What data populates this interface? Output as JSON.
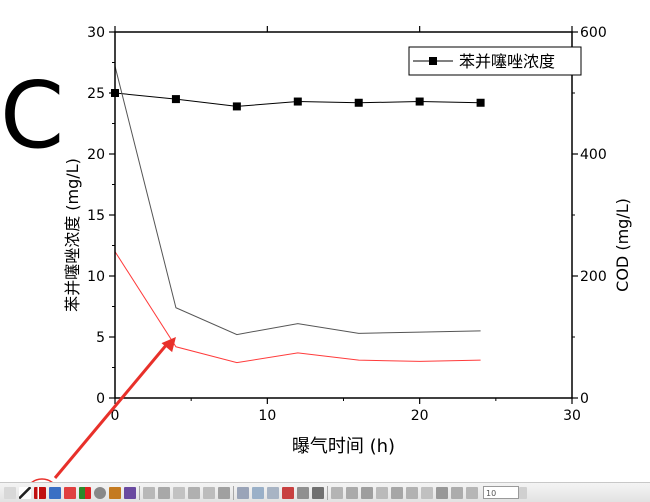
{
  "panel_label": "C",
  "chart_data": {
    "type": "line",
    "x_axis": {
      "label": "曝气时间 (h)",
      "range": [
        0,
        30
      ],
      "ticks": [
        0,
        10,
        20,
        30
      ]
    },
    "y_left": {
      "label": "苯并噻唑浓度 (mg/L)",
      "range": [
        0,
        30
      ],
      "ticks": [
        0,
        5,
        10,
        15,
        20,
        25,
        30
      ]
    },
    "y_right": {
      "label": "COD (mg/L)",
      "range": [
        0,
        600
      ],
      "ticks": [
        0,
        200,
        400,
        600
      ]
    },
    "legend": {
      "entries": [
        "苯并噻唑浓度"
      ],
      "position": "top-right"
    },
    "series": [
      {
        "name": "苯并噻唑浓度",
        "axis": "left",
        "marker": "square",
        "color": "#000000",
        "x": [
          0,
          4,
          8,
          12,
          16,
          20,
          24
        ],
        "y": [
          25.0,
          24.5,
          23.9,
          24.3,
          24.2,
          24.3,
          24.2
        ]
      },
      {
        "axis": "left",
        "marker": "none",
        "color": "#555555",
        "x": [
          0,
          4,
          8,
          12,
          16,
          20,
          24
        ],
        "y": [
          27.2,
          7.4,
          5.2,
          6.1,
          5.3,
          5.4,
          5.5
        ]
      },
      {
        "axis": "left",
        "marker": "none",
        "color": "#ff3b3b",
        "x": [
          0,
          4,
          8,
          12,
          16,
          20,
          24
        ],
        "y": [
          12.0,
          4.2,
          2.9,
          3.7,
          3.1,
          3.0,
          3.1
        ]
      }
    ],
    "annotation": {
      "type": "arrow",
      "color": "#e8302a",
      "target_point": {
        "x": 4,
        "y": 5.0
      }
    }
  },
  "toolbar": {
    "zoom_value": "10"
  }
}
